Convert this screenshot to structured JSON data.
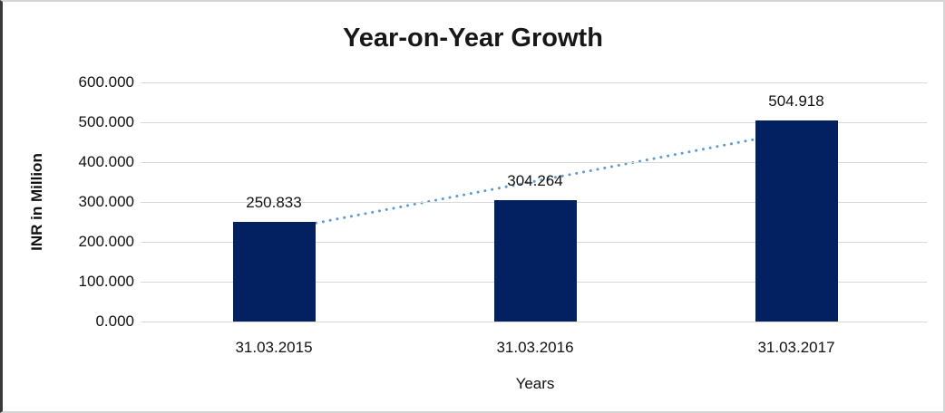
{
  "chart_data": {
    "type": "bar",
    "title": "Year-on-Year Growth",
    "xlabel": "Years",
    "ylabel": "INR in Million",
    "categories": [
      "31.03.2015",
      "31.03.2016",
      "31.03.2017"
    ],
    "values": [
      250.833,
      304.264,
      504.918
    ],
    "data_labels": [
      "250.833",
      "304.264",
      "504.918"
    ],
    "ylim": [
      0,
      600
    ],
    "ytick_step": 100,
    "ytick_labels": [
      "0.000",
      "100.000",
      "200.000",
      "300.000",
      "400.000",
      "500.000",
      "600.000"
    ],
    "grid": "horizontal-on",
    "legend": "none",
    "bar_color": "#032060",
    "gridline_color": "#d9d9d9",
    "trendline": {
      "type": "linear",
      "style": "dotted",
      "color": "#5b9bd5",
      "start_value": 227,
      "end_value": 477
    }
  }
}
